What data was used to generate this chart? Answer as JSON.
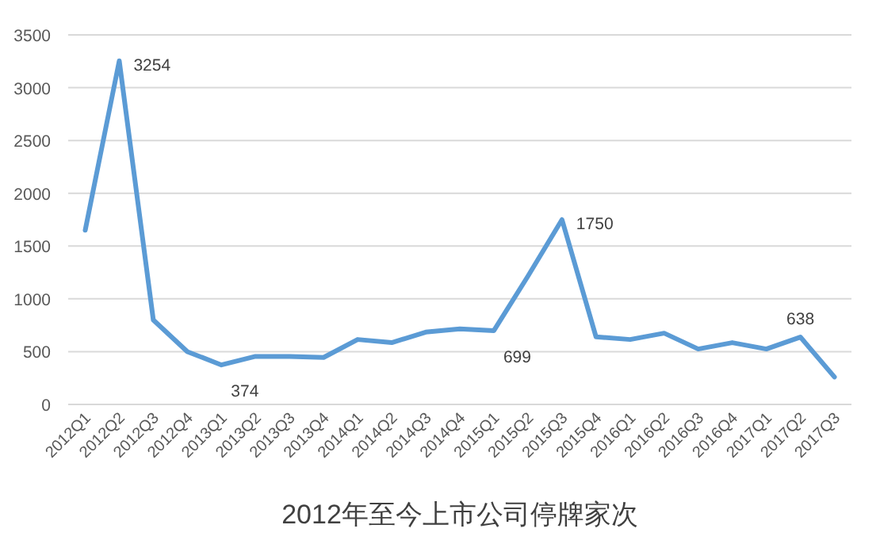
{
  "chart_data": {
    "type": "line",
    "title": "2012年至今上市公司停牌家次",
    "categories": [
      "2012Q1",
      "2012Q2",
      "2012Q3",
      "2012Q4",
      "2013Q1",
      "2013Q2",
      "2013Q3",
      "2013Q4",
      "2014Q1",
      "2014Q2",
      "2014Q3",
      "2014Q4",
      "2015Q1",
      "2015Q2",
      "2015Q3",
      "2015Q4",
      "2016Q1",
      "2016Q2",
      "2016Q3",
      "2016Q4",
      "2017Q1",
      "2017Q2",
      "2017Q3"
    ],
    "values": [
      1650,
      3254,
      800,
      500,
      374,
      455,
      455,
      445,
      615,
      585,
      685,
      715,
      699,
      1215,
      1750,
      640,
      615,
      675,
      525,
      585,
      525,
      638,
      260
    ],
    "value_labels": [
      null,
      "3254",
      null,
      null,
      "374",
      null,
      null,
      null,
      null,
      null,
      null,
      null,
      "699",
      null,
      "1750",
      null,
      null,
      null,
      null,
      null,
      null,
      "638",
      null
    ],
    "color": "#5b9bd5",
    "ylim": [
      0,
      3500
    ],
    "yticks": [
      0,
      500,
      1000,
      1500,
      2000,
      2500,
      3000,
      3500
    ],
    "grid": "y"
  }
}
